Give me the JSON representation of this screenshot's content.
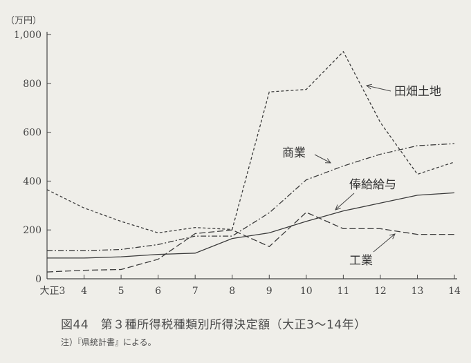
{
  "chart_data": {
    "type": "line",
    "unit_label": "（万円）",
    "categories": [
      "大正3",
      "4",
      "5",
      "6",
      "7",
      "8",
      "9",
      "10",
      "11",
      "12",
      "13",
      "14"
    ],
    "ylim": [
      0,
      1000
    ],
    "yticks": [
      "0",
      "200",
      "400",
      "600",
      "800",
      "1,000"
    ],
    "series": [
      {
        "name": "田畑土地",
        "style": "dashed-short",
        "values": [
          365,
          290,
          235,
          188,
          210,
          202,
          765,
          775,
          930,
          640,
          428,
          478
        ]
      },
      {
        "name": "商業",
        "style": "dash-dot",
        "values": [
          115,
          115,
          120,
          140,
          175,
          175,
          270,
          405,
          462,
          510,
          545,
          553
        ]
      },
      {
        "name": "俸給給与",
        "style": "solid",
        "values": [
          85,
          85,
          90,
          100,
          105,
          165,
          188,
          235,
          278,
          310,
          342,
          352
        ]
      },
      {
        "name": "工業",
        "style": "dashed-long",
        "values": [
          28,
          35,
          38,
          80,
          185,
          200,
          132,
          272,
          205,
          205,
          182,
          182
        ]
      }
    ],
    "grid": false
  },
  "caption": "図44　第３種所得税種類別所得決定額（大正3〜14年）",
  "note": "注）『県統計書』による。"
}
